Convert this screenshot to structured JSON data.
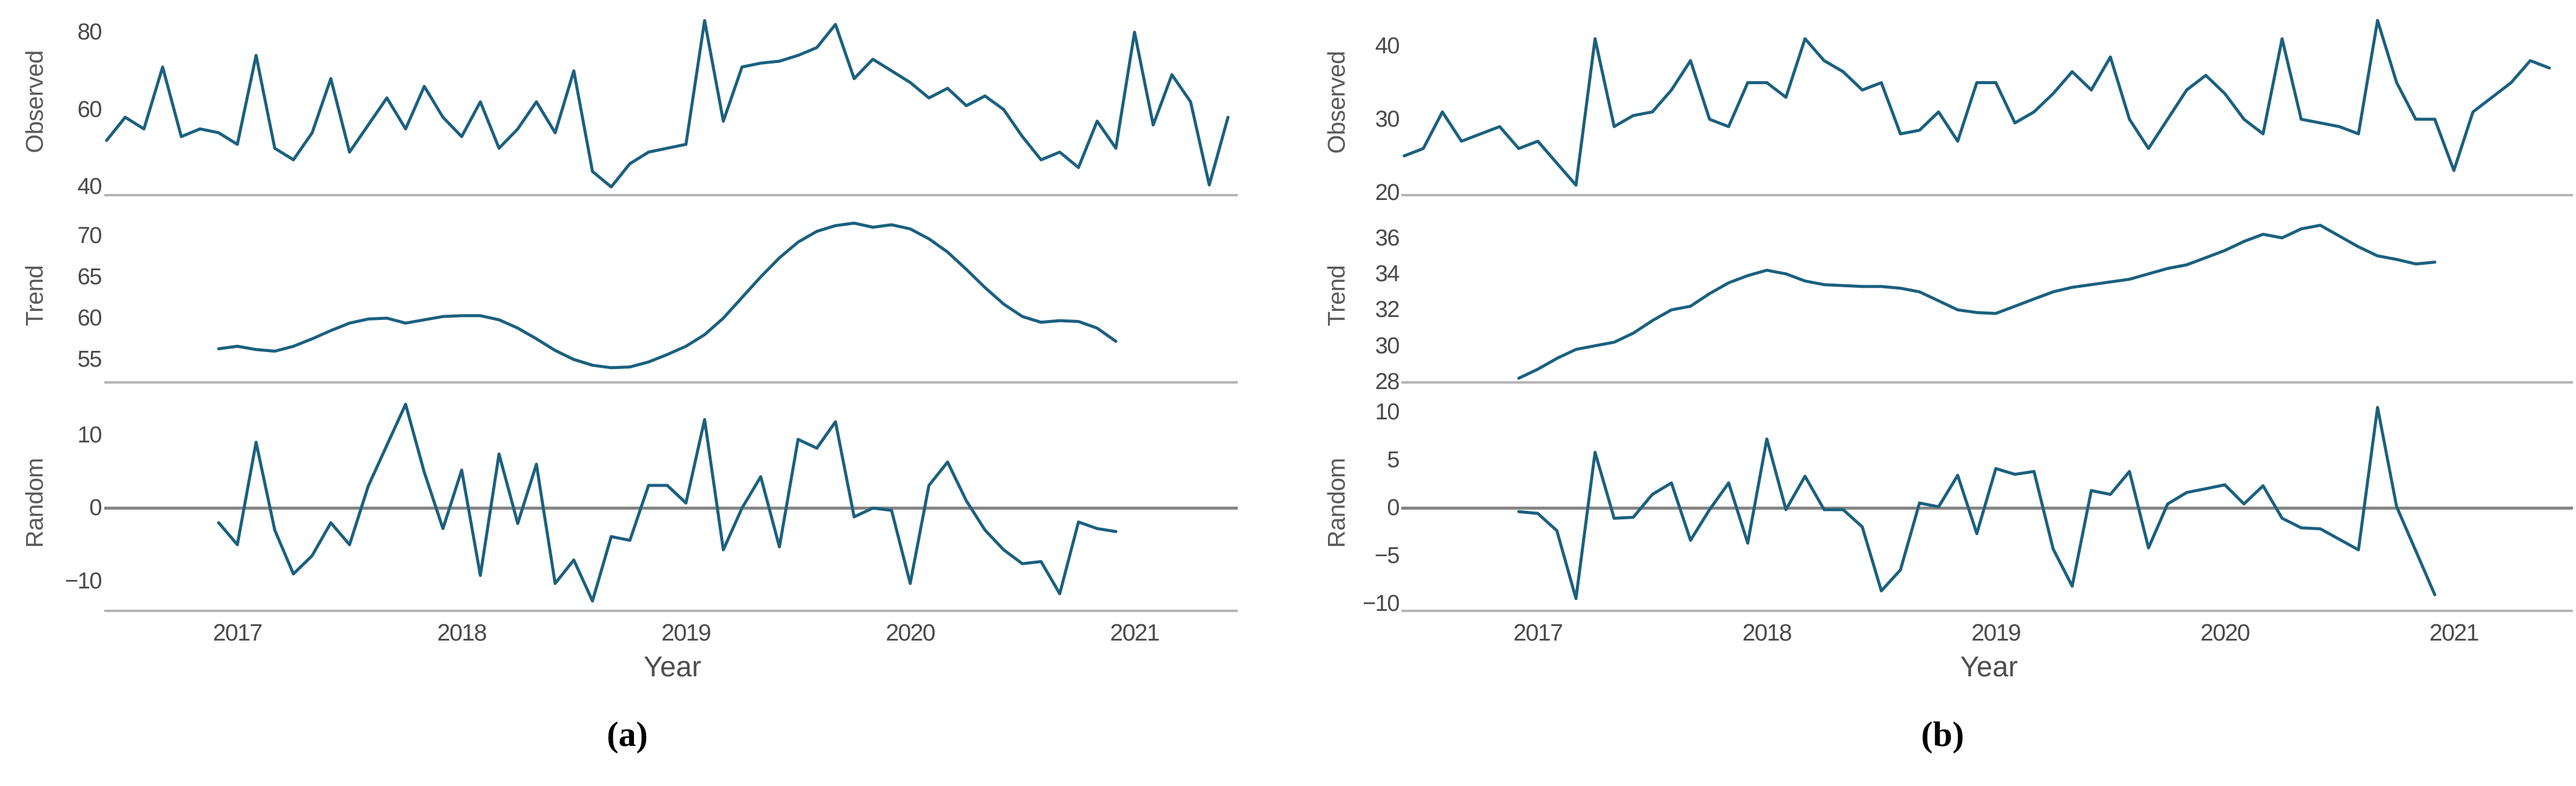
{
  "figure": {
    "caption_a": "(a)",
    "caption_b": "(b)"
  },
  "style": {
    "line_color": "#1b607f",
    "axis_line_color": "#b5b5b5",
    "zero_line_color": "#858585",
    "tick_color": "#4a4a4a",
    "label_color": "#5a5a5a"
  },
  "chart_data": [
    {
      "id": "a",
      "type": "line",
      "title": "",
      "xlabel": "Year",
      "xticks": [
        2017,
        2018,
        2019,
        2020,
        2021
      ],
      "xlim": [
        2016.42,
        2021.46
      ],
      "legend": "none",
      "grid": false,
      "layout": {
        "plot_left": 177,
        "plot_right": 2042,
        "axis_left": 172,
        "label_x": 58,
        "xtick_y": 1022,
        "xlabel_y": 1072,
        "caption_center_x": 1035,
        "caption_y": 1178
      },
      "panels": [
        {
          "name": "Observed",
          "yticks": [
            80,
            60,
            40
          ],
          "ylim": [
            38.5,
            85.5
          ],
          "top": 18,
          "bottom": 318,
          "axis_y": 320,
          "zero_line": false,
          "x_start": 2016.4167,
          "x_step": 0.083333,
          "values": [
            52,
            58,
            55,
            71,
            53,
            55,
            54,
            51,
            74,
            50,
            47,
            54,
            68,
            49,
            56,
            63,
            55,
            66,
            58,
            53,
            62,
            50,
            55,
            62,
            54,
            70,
            44,
            40,
            46,
            49,
            50,
            51,
            83,
            57,
            71,
            72,
            72.5,
            74,
            76,
            82,
            68,
            73,
            70,
            67,
            63,
            65.5,
            61,
            63.5,
            60,
            53,
            47,
            49,
            45,
            57,
            50,
            80,
            56,
            69,
            62,
            40.5,
            58
          ]
        },
        {
          "name": "Trend",
          "yticks": [
            70,
            65,
            60,
            55
          ],
          "ylim": [
            52.3,
            73.2
          ],
          "top": 345,
          "bottom": 630,
          "axis_y": 629,
          "zero_line": false,
          "x_start": 2016.9167,
          "x_step": 0.083333,
          "values": [
            56.3,
            56.6,
            56.2,
            56.0,
            56.6,
            57.5,
            58.5,
            59.4,
            59.9,
            60.0,
            59.4,
            59.8,
            60.2,
            60.3,
            60.3,
            59.8,
            58.8,
            57.5,
            56.1,
            55.0,
            54.3,
            54.0,
            54.1,
            54.7,
            55.6,
            56.6,
            58.0,
            60.0,
            62.5,
            65.0,
            67.3,
            69.2,
            70.5,
            71.2,
            71.5,
            71.0,
            71.3,
            70.8,
            69.6,
            68.0,
            65.9,
            63.7,
            61.7,
            60.2,
            59.5,
            59.7,
            59.6,
            58.8,
            57.2
          ]
        },
        {
          "name": "Random",
          "yticks": [
            10,
            0,
            -10
          ],
          "ylim": [
            -13.8,
            15.2
          ],
          "top": 655,
          "bottom": 1005,
          "axis_y": 1006,
          "zero_line": true,
          "x_start": 2016.9167,
          "x_step": 0.083333,
          "values": [
            -2,
            -5,
            9,
            -3,
            -9,
            -6.5,
            -2,
            -5,
            3,
            8.6,
            14.2,
            4.9,
            -2.8,
            5.2,
            -9.2,
            7.4,
            -2.1,
            6.0,
            -10.3,
            -7.1,
            -12.7,
            -3.9,
            -4.4,
            3.1,
            3.1,
            0.7,
            12.1,
            -5.7,
            0,
            4.3,
            -5.3,
            9.4,
            8.2,
            11.8,
            -1.2,
            0,
            -0.3,
            -10.3,
            3.1,
            6.3,
            1,
            -3,
            -5.7,
            -7.6,
            -7.3,
            -11.7,
            -1.9,
            -2.8,
            -3.2
          ]
        }
      ]
    },
    {
      "id": "b",
      "type": "line",
      "title": "",
      "xlabel": "Year",
      "xticks": [
        2017,
        2018,
        2019,
        2020,
        2021
      ],
      "xlim": [
        2016.42,
        2021.52
      ],
      "legend": "none",
      "grid": false,
      "layout": {
        "plot_left": 2318,
        "plot_right": 4245,
        "axis_left": 2312,
        "label_x": 2206,
        "xtick_y": 1022,
        "xlabel_y": 1072,
        "caption_center_x": 3205,
        "caption_y": 1178
      },
      "panels": [
        {
          "name": "Observed",
          "yticks": [
            40,
            30,
            20
          ],
          "ylim": [
            19.8,
            44.8
          ],
          "top": 18,
          "bottom": 320,
          "axis_y": 320,
          "zero_line": false,
          "x_start": 2016.4167,
          "x_step": 0.083333,
          "values": [
            25,
            26,
            31,
            27,
            28,
            29,
            26,
            27,
            24,
            21,
            41,
            29,
            30.5,
            31,
            34,
            38,
            30,
            29,
            35,
            35,
            33,
            41,
            38,
            36.5,
            34,
            35,
            28,
            28.5,
            31,
            27,
            35,
            35,
            29.5,
            31,
            33.5,
            36.5,
            34,
            38.5,
            30,
            26,
            30,
            34,
            36,
            33.5,
            30,
            28,
            41,
            30,
            29.5,
            29,
            28,
            43.5,
            35,
            30,
            30,
            23,
            31,
            33,
            35,
            38,
            37
          ]
        },
        {
          "name": "Trend",
          "yticks": [
            36,
            34,
            32,
            30,
            28
          ],
          "ylim": [
            28,
            37.6
          ],
          "top": 345,
          "bottom": 630,
          "axis_y": 629,
          "zero_line": false,
          "x_start": 2016.9167,
          "x_step": 0.083333,
          "values": [
            28.2,
            28.7,
            29.3,
            29.8,
            30.0,
            30.2,
            30.7,
            31.4,
            32.0,
            32.2,
            32.9,
            33.5,
            33.9,
            34.2,
            34.0,
            33.6,
            33.4,
            33.35,
            33.3,
            33.3,
            33.2,
            33.0,
            32.5,
            32.0,
            31.85,
            31.8,
            32.2,
            32.6,
            33.0,
            33.25,
            33.4,
            33.55,
            33.7,
            34.0,
            34.3,
            34.5,
            34.9,
            35.3,
            35.8,
            36.2,
            36.0,
            36.5,
            36.7,
            36.1,
            35.5,
            35.0,
            34.8,
            34.55,
            34.65
          ]
        },
        {
          "name": "Random",
          "yticks": [
            10,
            5,
            0,
            -5,
            -10
          ],
          "ylim": [
            -10.6,
            11.6
          ],
          "top": 655,
          "bottom": 1005,
          "axis_y": 1006,
          "zero_line": true,
          "x_start": 2016.9167,
          "x_step": 0.083333,
          "values": [
            -0.4,
            -0.6,
            -2.4,
            -9.5,
            5.8,
            -1.1,
            -1.0,
            1.4,
            2.6,
            -3.4,
            -0.2,
            2.6,
            -3.7,
            7.2,
            -0.2,
            3.3,
            -0.2,
            -0.2,
            -2,
            -8.7,
            -6.5,
            0.5,
            0.1,
            3.4,
            -2.7,
            4.1,
            3.5,
            3.8,
            -4.3,
            -8.2,
            1.8,
            1.4,
            3.8,
            -4.2,
            0.4,
            1.6,
            2.0,
            2.4,
            0.4,
            2.3,
            -1.1,
            -2.1,
            -2.2,
            -3.3,
            -4.4,
            10.5,
            0.1,
            -4.5,
            -9.1
          ]
        }
      ]
    }
  ]
}
